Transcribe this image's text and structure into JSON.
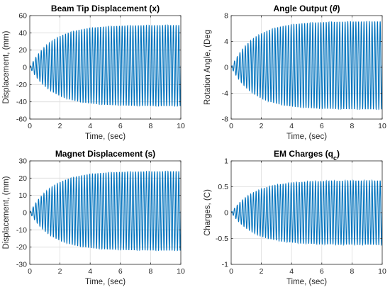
{
  "series_color": "#0072BD",
  "chart_data": [
    {
      "type": "line",
      "title_parts": [
        {
          "text": "Beam Tip Displacement (x)",
          "italic": false,
          "sub": false
        }
      ],
      "xlabel": "Time, (sec)",
      "ylabel": "Displacement, (mm)",
      "xlim": [
        0,
        10
      ],
      "ylim": [
        -60,
        60
      ],
      "xticks": [
        0,
        2,
        4,
        6,
        8,
        10
      ],
      "yticks": [
        -60,
        -40,
        -20,
        0,
        20,
        40,
        60
      ],
      "grid": true,
      "signal": {
        "frequency_hz": 5.6,
        "steady_amplitude": 47,
        "time_constant_s": 1.5,
        "offset": 2
      }
    },
    {
      "type": "line",
      "title_parts": [
        {
          "text": "Angle Output (",
          "italic": false,
          "sub": false
        },
        {
          "text": "θ",
          "italic": true,
          "sub": false
        },
        {
          "text": ")",
          "italic": false,
          "sub": false
        }
      ],
      "xlabel": "Time, (sec)",
      "ylabel": "Rotation Angle, (Deg",
      "xlim": [
        0,
        10
      ],
      "ylim": [
        -8,
        8
      ],
      "xticks": [
        0,
        2,
        4,
        6,
        8,
        10
      ],
      "yticks": [
        -8,
        -4,
        0,
        4,
        8
      ],
      "grid": true,
      "signal": {
        "frequency_hz": 5.6,
        "steady_amplitude": 6.8,
        "time_constant_s": 1.5,
        "offset": 0.3
      }
    },
    {
      "type": "line",
      "title_parts": [
        {
          "text": "Magnet Displacement (s)",
          "italic": false,
          "sub": false
        }
      ],
      "xlabel": "Time, (sec)",
      "ylabel": "Displacement, (mm)",
      "xlim": [
        0,
        10
      ],
      "ylim": [
        -30,
        30
      ],
      "xticks": [
        0,
        2,
        4,
        6,
        8,
        10
      ],
      "yticks": [
        -30,
        -20,
        -10,
        0,
        10,
        20,
        30
      ],
      "grid": true,
      "signal": {
        "frequency_hz": 5.6,
        "steady_amplitude": 23,
        "time_constant_s": 1.5,
        "offset": 1
      }
    },
    {
      "type": "line",
      "title_parts": [
        {
          "text": "EM Charges (q",
          "italic": false,
          "sub": false
        },
        {
          "text": "c",
          "italic": false,
          "sub": true
        },
        {
          "text": ")",
          "italic": false,
          "sub": false
        }
      ],
      "xlabel": "Time, (sec)",
      "ylabel": "Charges, (C)",
      "xlim": [
        0,
        10
      ],
      "ylim": [
        -1,
        1
      ],
      "xticks": [
        0,
        2,
        4,
        6,
        8,
        10
      ],
      "yticks": [
        -1,
        -0.5,
        0,
        0.5,
        1
      ],
      "grid": true,
      "signal": {
        "frequency_hz": 5.6,
        "steady_amplitude": 0.62,
        "time_constant_s": 1.5,
        "offset": 0
      }
    }
  ]
}
